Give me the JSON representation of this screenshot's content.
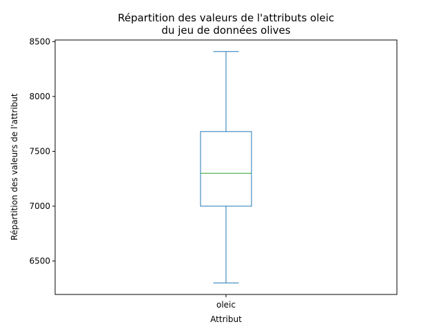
{
  "chart_data": {
    "type": "box",
    "title": [
      "Répartition des valeurs de l'attributs oleic",
      "du jeu de données olives"
    ],
    "xlabel": "Attribut",
    "ylabel": "Répartition des valeurs de l'attribut",
    "categories": [
      "oleic"
    ],
    "boxes": [
      {
        "category": "oleic",
        "whisker_low": 6300,
        "q1": 7000,
        "median": 7300,
        "q3": 7680,
        "whisker_high": 8410
      }
    ],
    "ylim": [
      6195,
      8515
    ],
    "yticks": [
      6500,
      7000,
      7500,
      8000,
      8500
    ],
    "grid": false,
    "colors": {
      "box": "#1f77b4",
      "median": "#2ca02c",
      "axes": "#000000"
    }
  }
}
